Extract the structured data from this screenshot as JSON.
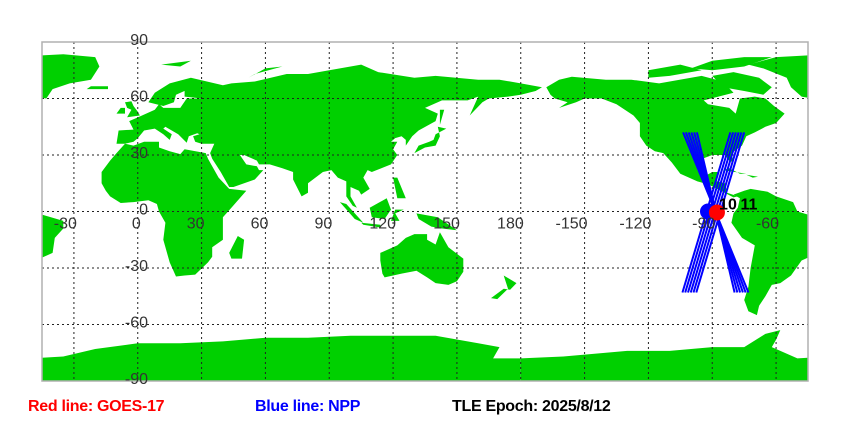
{
  "map": {
    "lon_range": [
      -45,
      315
    ],
    "lat_range": [
      -90,
      90
    ],
    "land_color": "#00d000",
    "grid": {
      "lon_lines": [
        -30,
        0,
        30,
        60,
        90,
        120,
        150,
        180,
        210,
        240,
        270,
        300
      ],
      "lat_lines": [
        -60,
        -30,
        0,
        30,
        60
      ],
      "lon_labels": [
        {
          "lon": -30,
          "text": "-30"
        },
        {
          "lon": 0,
          "text": "0"
        },
        {
          "lon": 30,
          "text": "30"
        },
        {
          "lon": 60,
          "text": "60"
        },
        {
          "lon": 90,
          "text": "90"
        },
        {
          "lon": 120,
          "text": "120"
        },
        {
          "lon": 150,
          "text": "150"
        },
        {
          "lon": 180,
          "text": "180"
        },
        {
          "lon": 210,
          "text": "-150"
        },
        {
          "lon": 240,
          "text": "-120"
        },
        {
          "lon": 270,
          "text": "-90"
        },
        {
          "lon": 300,
          "text": "-60"
        }
      ],
      "lat_labels": [
        {
          "lat": 90,
          "text": "90"
        },
        {
          "lat": 60,
          "text": "60"
        },
        {
          "lat": 30,
          "text": "30"
        },
        {
          "lat": 0,
          "text": "0"
        },
        {
          "lat": -30,
          "text": "-30"
        },
        {
          "lat": -60,
          "text": "-60"
        },
        {
          "lat": -90,
          "text": "-90"
        }
      ]
    },
    "tracks": [
      {
        "satellite": "NPP",
        "color": "#0000ff",
        "lines": [
          [
            [
              -103.7,
              42
            ],
            [
              -73.0,
              -43
            ]
          ],
          [
            [
              -102.4,
              42
            ],
            [
              -74.3,
              -43
            ]
          ],
          [
            [
              -101.1,
              42
            ],
            [
              -75.6,
              -43
            ]
          ],
          [
            [
              -99.8,
              42
            ],
            [
              -76.9,
              -43
            ]
          ],
          [
            [
              -98.5,
              42
            ],
            [
              -78.2,
              -43
            ]
          ],
          [
            [
              -97.2,
              42
            ],
            [
              -79.5,
              -43
            ]
          ],
          [
            [
              -81.5,
              42
            ],
            [
              -104.0,
              -43
            ]
          ],
          [
            [
              -80.2,
              42
            ],
            [
              -102.7,
              -43
            ]
          ],
          [
            [
              -78.9,
              42
            ],
            [
              -101.4,
              -43
            ]
          ],
          [
            [
              -77.6,
              42
            ],
            [
              -100.1,
              -43
            ]
          ],
          [
            [
              -76.3,
              42
            ],
            [
              -98.8,
              -43
            ]
          ],
          [
            [
              -75.0,
              42
            ],
            [
              -97.5,
              -43
            ]
          ]
        ]
      }
    ],
    "positions": [
      {
        "satellite": "NPP",
        "color": "#0000ff",
        "lon": -92.0,
        "lat": 0.0
      },
      {
        "satellite": "GOES-17",
        "color": "#ff0000",
        "lon": -87.8,
        "lat": -0.5
      }
    ],
    "point_labels": [
      {
        "text": "10",
        "lon": -84.5,
        "lat": 1.5
      },
      {
        "text": "11",
        "lon": -83.8,
        "lat": 1.5
      }
    ]
  },
  "legend": {
    "red": {
      "text": "Red line: GOES-17",
      "color": "#ff0000"
    },
    "blue": {
      "text": "Blue line: NPP",
      "color": "#0000ff"
    },
    "epoch": {
      "text": "TLE Epoch: 2025/8/12",
      "color": "#000000"
    }
  }
}
